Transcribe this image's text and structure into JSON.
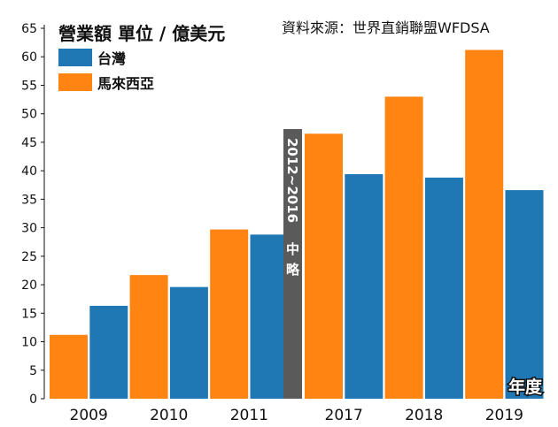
{
  "chart_data": {
    "type": "bar",
    "title": "營業額 單位 / 億美元",
    "source": "資料來源：世界直銷聯盟WFDSA",
    "xlabel": "年度",
    "categories": [
      "2009",
      "2010",
      "2011",
      "2017",
      "2018",
      "2019"
    ],
    "series": [
      {
        "name": "馬來西亞",
        "color": "#ff8411",
        "values": [
          11.2,
          21.7,
          29.7,
          46.5,
          53.0,
          61.2
        ]
      },
      {
        "name": "台灣",
        "color": "#1f77b4",
        "values": [
          16.3,
          19.6,
          28.8,
          39.4,
          38.8,
          36.6
        ]
      }
    ],
    "ylim": [
      0,
      65
    ],
    "yticks": [
      0,
      5,
      10,
      15,
      20,
      25,
      30,
      35,
      40,
      45,
      50,
      55,
      60,
      65
    ],
    "legend": [
      {
        "name": "台灣",
        "color": "#1f77b4"
      },
      {
        "name": "馬來西亞",
        "color": "#ff8411"
      }
    ],
    "omitted": {
      "range": "2012~2016",
      "label": "中略"
    },
    "grid": false
  }
}
